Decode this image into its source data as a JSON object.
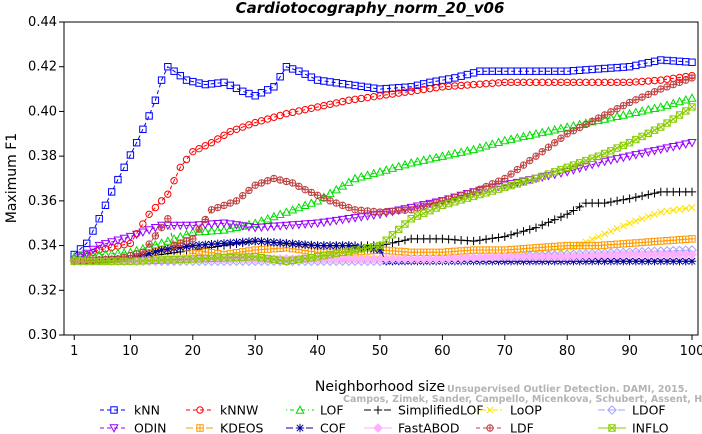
{
  "chart_data": {
    "type": "line",
    "title": "Cardiotocography_norm_20_v06",
    "xlabel": "Neighborhood size",
    "ylabel": "Maximum F1",
    "xlim": [
      0,
      100
    ],
    "ylim": [
      0.3,
      0.44
    ],
    "xticks": [
      1,
      10,
      20,
      30,
      40,
      50,
      60,
      70,
      80,
      90,
      100
    ],
    "xtick_labels": [
      "1",
      "10",
      "20",
      "30",
      "40",
      "50",
      "60",
      "70",
      "80",
      "90",
      "100"
    ],
    "yticks": [
      0.3,
      0.32,
      0.34,
      0.36,
      0.38,
      0.4,
      0.42,
      0.44
    ],
    "ytick_labels": [
      "0.30",
      "0.32",
      "0.34",
      "0.36",
      "0.38",
      "0.40",
      "0.42",
      "0.44"
    ],
    "grid": false,
    "legend_position": "bottom",
    "watermark": [
      "Unsupervised Outlier Detection. DAMI, 2015.",
      "Campos, Zimek, Sander, Campello, Micenkova, Schubert, Assent, Houle"
    ],
    "series": [
      {
        "name": "kNN",
        "color": "#0000ff",
        "marker": "square",
        "dash": "dashed",
        "points": [
          [
            1,
            0.336
          ],
          [
            3,
            0.341
          ],
          [
            5,
            0.352
          ],
          [
            7,
            0.364
          ],
          [
            9,
            0.375
          ],
          [
            11,
            0.386
          ],
          [
            13,
            0.398
          ],
          [
            14,
            0.405
          ],
          [
            15,
            0.414
          ],
          [
            16,
            0.42
          ],
          [
            17,
            0.418
          ],
          [
            19,
            0.414
          ],
          [
            22,
            0.412
          ],
          [
            25,
            0.413
          ],
          [
            28,
            0.409
          ],
          [
            30,
            0.407
          ],
          [
            33,
            0.411
          ],
          [
            35,
            0.42
          ],
          [
            37,
            0.418
          ],
          [
            40,
            0.414
          ],
          [
            45,
            0.412
          ],
          [
            50,
            0.41
          ],
          [
            55,
            0.411
          ],
          [
            58,
            0.413
          ],
          [
            62,
            0.415
          ],
          [
            66,
            0.418
          ],
          [
            70,
            0.418
          ],
          [
            75,
            0.418
          ],
          [
            80,
            0.418
          ],
          [
            85,
            0.419
          ],
          [
            90,
            0.42
          ],
          [
            95,
            0.423
          ],
          [
            100,
            0.422
          ]
        ]
      },
      {
        "name": "kNNW",
        "color": "#ff0000",
        "marker": "circle",
        "dash": "dashed",
        "points": [
          [
            1,
            0.334
          ],
          [
            5,
            0.338
          ],
          [
            10,
            0.341
          ],
          [
            13,
            0.354
          ],
          [
            15,
            0.36
          ],
          [
            16,
            0.363
          ],
          [
            18,
            0.375
          ],
          [
            20,
            0.382
          ],
          [
            23,
            0.386
          ],
          [
            26,
            0.391
          ],
          [
            30,
            0.395
          ],
          [
            35,
            0.399
          ],
          [
            40,
            0.402
          ],
          [
            45,
            0.405
          ],
          [
            50,
            0.407
          ],
          [
            55,
            0.409
          ],
          [
            60,
            0.411
          ],
          [
            65,
            0.412
          ],
          [
            70,
            0.413
          ],
          [
            75,
            0.413
          ],
          [
            80,
            0.413
          ],
          [
            85,
            0.413
          ],
          [
            90,
            0.413
          ],
          [
            95,
            0.414
          ],
          [
            100,
            0.416
          ]
        ]
      },
      {
        "name": "LOF",
        "color": "#00dd00",
        "marker": "triangle-up",
        "dash": "dotdash",
        "points": [
          [
            1,
            0.335
          ],
          [
            10,
            0.337
          ],
          [
            16,
            0.342
          ],
          [
            20,
            0.346
          ],
          [
            25,
            0.347
          ],
          [
            30,
            0.35
          ],
          [
            35,
            0.355
          ],
          [
            40,
            0.36
          ],
          [
            43,
            0.365
          ],
          [
            46,
            0.37
          ],
          [
            50,
            0.373
          ],
          [
            55,
            0.377
          ],
          [
            60,
            0.38
          ],
          [
            65,
            0.383
          ],
          [
            70,
            0.387
          ],
          [
            75,
            0.39
          ],
          [
            80,
            0.393
          ],
          [
            85,
            0.396
          ],
          [
            90,
            0.399
          ],
          [
            95,
            0.402
          ],
          [
            100,
            0.406
          ]
        ]
      },
      {
        "name": "SimplifiedLOF",
        "color": "#000000",
        "marker": "plus",
        "dash": "longdash",
        "points": [
          [
            1,
            0.333
          ],
          [
            10,
            0.334
          ],
          [
            15,
            0.336
          ],
          [
            20,
            0.338
          ],
          [
            25,
            0.34
          ],
          [
            30,
            0.342
          ],
          [
            35,
            0.341
          ],
          [
            40,
            0.34
          ],
          [
            45,
            0.34
          ],
          [
            50,
            0.34
          ],
          [
            55,
            0.343
          ],
          [
            60,
            0.343
          ],
          [
            65,
            0.342
          ],
          [
            70,
            0.344
          ],
          [
            75,
            0.348
          ],
          [
            80,
            0.354
          ],
          [
            83,
            0.359
          ],
          [
            86,
            0.359
          ],
          [
            90,
            0.361
          ],
          [
            95,
            0.364
          ],
          [
            100,
            0.364
          ]
        ]
      },
      {
        "name": "LoOP",
        "color": "#ffe000",
        "marker": "x",
        "dash": "twodash",
        "points": [
          [
            1,
            0.333
          ],
          [
            10,
            0.334
          ],
          [
            20,
            0.335
          ],
          [
            30,
            0.334
          ],
          [
            40,
            0.334
          ],
          [
            50,
            0.334
          ],
          [
            60,
            0.335
          ],
          [
            70,
            0.336
          ],
          [
            80,
            0.338
          ],
          [
            85,
            0.344
          ],
          [
            90,
            0.35
          ],
          [
            95,
            0.355
          ],
          [
            100,
            0.357
          ]
        ]
      },
      {
        "name": "LDOF",
        "color": "#a0a0ff",
        "marker": "diamond",
        "dash": "longdash",
        "points": [
          [
            1,
            0.333
          ],
          [
            10,
            0.333
          ],
          [
            20,
            0.333
          ],
          [
            30,
            0.333
          ],
          [
            40,
            0.333
          ],
          [
            50,
            0.333
          ],
          [
            60,
            0.334
          ],
          [
            70,
            0.335
          ],
          [
            80,
            0.336
          ],
          [
            90,
            0.337
          ],
          [
            100,
            0.338
          ]
        ]
      },
      {
        "name": "ODIN",
        "color": "#9a00ff",
        "marker": "triangle-down",
        "dash": "dashed",
        "points": [
          [
            1,
            0.333
          ],
          [
            5,
            0.34
          ],
          [
            10,
            0.344
          ],
          [
            15,
            0.349
          ],
          [
            20,
            0.349
          ],
          [
            25,
            0.35
          ],
          [
            30,
            0.348
          ],
          [
            35,
            0.349
          ],
          [
            40,
            0.35
          ],
          [
            45,
            0.352
          ],
          [
            50,
            0.354
          ],
          [
            55,
            0.357
          ],
          [
            60,
            0.36
          ],
          [
            65,
            0.364
          ],
          [
            70,
            0.367
          ],
          [
            75,
            0.37
          ],
          [
            80,
            0.373
          ],
          [
            85,
            0.377
          ],
          [
            90,
            0.38
          ],
          [
            95,
            0.383
          ],
          [
            100,
            0.386
          ]
        ]
      },
      {
        "name": "KDEOS",
        "color": "#ff9900",
        "marker": "square-cross",
        "dash": "longdash",
        "points": [
          [
            1,
            0.333
          ],
          [
            10,
            0.334
          ],
          [
            15,
            0.338
          ],
          [
            18,
            0.34
          ],
          [
            20,
            0.338
          ],
          [
            25,
            0.336
          ],
          [
            30,
            0.338
          ],
          [
            35,
            0.339
          ],
          [
            40,
            0.337
          ],
          [
            45,
            0.337
          ],
          [
            50,
            0.338
          ],
          [
            55,
            0.337
          ],
          [
            60,
            0.337
          ],
          [
            65,
            0.338
          ],
          [
            70,
            0.338
          ],
          [
            75,
            0.339
          ],
          [
            80,
            0.34
          ],
          [
            85,
            0.34
          ],
          [
            90,
            0.341
          ],
          [
            95,
            0.342
          ],
          [
            100,
            0.343
          ]
        ]
      },
      {
        "name": "COF",
        "color": "#000099",
        "marker": "asterisk",
        "dash": "longdash",
        "points": [
          [
            1,
            0.333
          ],
          [
            10,
            0.334
          ],
          [
            15,
            0.338
          ],
          [
            20,
            0.34
          ],
          [
            25,
            0.341
          ],
          [
            30,
            0.342
          ],
          [
            35,
            0.341
          ],
          [
            40,
            0.34
          ],
          [
            45,
            0.34
          ],
          [
            50,
            0.338
          ],
          [
            51,
            0.333
          ],
          [
            60,
            0.333
          ],
          [
            70,
            0.333
          ],
          [
            80,
            0.333
          ],
          [
            90,
            0.333
          ],
          [
            100,
            0.333
          ]
        ]
      },
      {
        "name": "FastABOD",
        "color": "#ffb0ff",
        "marker": "diamond-filled",
        "dash": "solid",
        "points": [
          [
            1,
            0.333
          ],
          [
            10,
            0.333
          ],
          [
            20,
            0.334
          ],
          [
            30,
            0.334
          ],
          [
            40,
            0.334
          ],
          [
            50,
            0.334
          ],
          [
            60,
            0.334
          ],
          [
            70,
            0.335
          ],
          [
            80,
            0.335
          ],
          [
            90,
            0.336
          ],
          [
            100,
            0.336
          ]
        ]
      },
      {
        "name": "LDF",
        "color": "#c04040",
        "marker": "circle-plus",
        "dash": "dashed",
        "points": [
          [
            1,
            0.333
          ],
          [
            8,
            0.334
          ],
          [
            12,
            0.337
          ],
          [
            15,
            0.348
          ],
          [
            16,
            0.352
          ],
          [
            17,
            0.34
          ],
          [
            20,
            0.343
          ],
          [
            23,
            0.356
          ],
          [
            27,
            0.36
          ],
          [
            30,
            0.367
          ],
          [
            33,
            0.37
          ],
          [
            36,
            0.368
          ],
          [
            38,
            0.365
          ],
          [
            42,
            0.36
          ],
          [
            46,
            0.356
          ],
          [
            50,
            0.355
          ],
          [
            55,
            0.356
          ],
          [
            60,
            0.36
          ],
          [
            65,
            0.364
          ],
          [
            70,
            0.37
          ],
          [
            75,
            0.38
          ],
          [
            80,
            0.39
          ],
          [
            85,
            0.397
          ],
          [
            90,
            0.404
          ],
          [
            95,
            0.41
          ],
          [
            100,
            0.415
          ]
        ]
      },
      {
        "name": "INFLO",
        "color": "#88cc00",
        "marker": "square-x",
        "dash": "solid",
        "points": [
          [
            1,
            0.333
          ],
          [
            10,
            0.333
          ],
          [
            20,
            0.334
          ],
          [
            30,
            0.335
          ],
          [
            35,
            0.333
          ],
          [
            40,
            0.335
          ],
          [
            50,
            0.34
          ],
          [
            55,
            0.352
          ],
          [
            60,
            0.358
          ],
          [
            65,
            0.362
          ],
          [
            70,
            0.366
          ],
          [
            75,
            0.37
          ],
          [
            80,
            0.375
          ],
          [
            85,
            0.38
          ],
          [
            90,
            0.386
          ],
          [
            95,
            0.393
          ],
          [
            100,
            0.402
          ]
        ]
      }
    ]
  }
}
